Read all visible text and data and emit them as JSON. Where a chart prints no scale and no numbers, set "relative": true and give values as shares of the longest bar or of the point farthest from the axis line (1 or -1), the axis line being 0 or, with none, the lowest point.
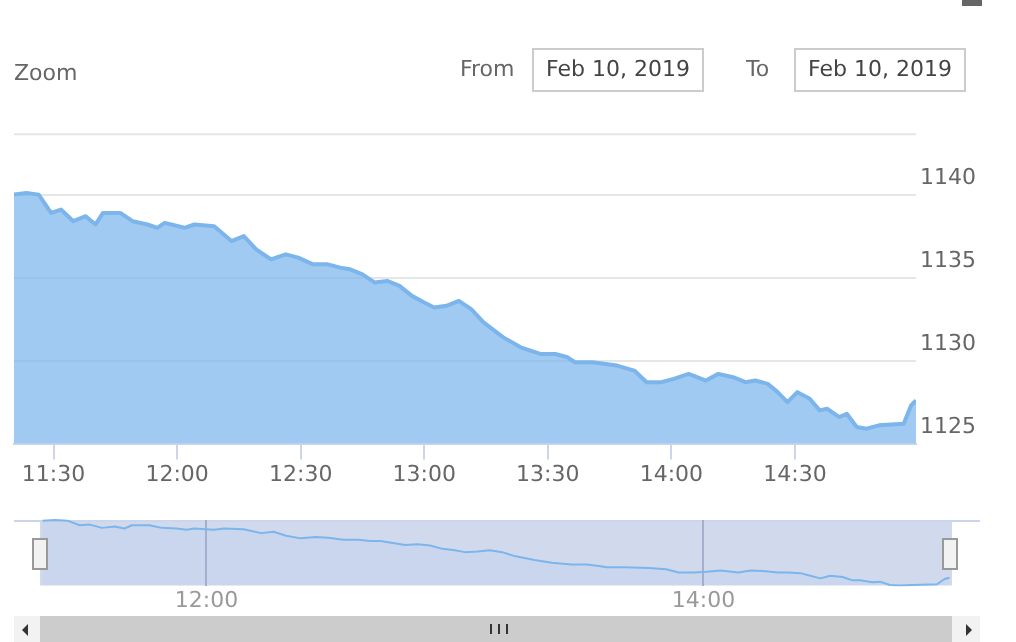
{
  "chart_data": [
    {
      "type": "area",
      "annotations": [
        "Zoom",
        "From",
        "Feb 10, 2019",
        "To",
        "Feb 10, 2019"
      ],
      "x": [
        11.34,
        11.39,
        11.44,
        11.49,
        11.53,
        11.58,
        11.63,
        11.67,
        11.7,
        11.77,
        11.82,
        11.88,
        11.92,
        11.95,
        12.03,
        12.07,
        12.15,
        12.22,
        12.27,
        12.32,
        12.38,
        12.44,
        12.49,
        12.55,
        12.61,
        12.66,
        12.7,
        12.75,
        12.8,
        12.85,
        12.9,
        12.95,
        13.0,
        13.04,
        13.09,
        13.14,
        13.19,
        13.24,
        13.32,
        13.39,
        13.47,
        13.53,
        13.58,
        13.61,
        13.68,
        13.78,
        13.85,
        13.9,
        13.96,
        14.01,
        14.07,
        14.14,
        14.19,
        14.25,
        14.3,
        14.34,
        14.39,
        14.43,
        14.47,
        14.51,
        14.56,
        14.6,
        14.63,
        14.68,
        14.71,
        14.75,
        14.79,
        14.84,
        14.94,
        14.97,
        14.99
      ],
      "series": [
        {
          "color": "#7cb5ec",
          "values": [
            1140.0,
            1140.1,
            1140.0,
            1138.9,
            1139.1,
            1138.4,
            1138.7,
            1138.2,
            1138.9,
            1138.9,
            1138.4,
            1138.2,
            1138.0,
            1138.3,
            1138.0,
            1138.2,
            1138.1,
            1137.2,
            1137.5,
            1136.7,
            1136.1,
            1136.4,
            1136.2,
            1135.8,
            1135.8,
            1135.6,
            1135.5,
            1135.2,
            1134.7,
            1134.8,
            1134.5,
            1133.9,
            1133.5,
            1133.2,
            1133.3,
            1133.6,
            1133.1,
            1132.3,
            1131.4,
            1130.8,
            1130.4,
            1130.4,
            1130.2,
            1129.9,
            1129.9,
            1129.7,
            1129.4,
            1128.7,
            1128.7,
            1128.9,
            1129.2,
            1128.8,
            1129.2,
            1129.0,
            1128.7,
            1128.8,
            1128.6,
            1128.1,
            1127.5,
            1128.1,
            1127.7,
            1127.0,
            1127.1,
            1126.6,
            1126.8,
            1126.0,
            1125.9,
            1126.1,
            1126.2,
            1127.3,
            1127.6
          ]
        }
      ],
      "xlim": [
        11.34,
        14.99
      ],
      "xticks": [
        {
          "value": 11.5,
          "label": "11:30"
        },
        {
          "value": 12,
          "label": "12:00"
        },
        {
          "value": 12.5,
          "label": "12:30"
        },
        {
          "value": 13,
          "label": "13:00"
        },
        {
          "value": 13.5,
          "label": "13:30"
        },
        {
          "value": 14,
          "label": "14:00"
        },
        {
          "value": 14.5,
          "label": "14:30"
        }
      ],
      "ylim": [
        1125,
        1143.7
      ],
      "yticks": [
        1125,
        1130,
        1135,
        1140
      ],
      "grid": "y"
    },
    {
      "type": "area",
      "x": [
        11.34,
        11.39,
        11.44,
        11.49,
        11.53,
        11.58,
        11.63,
        11.67,
        11.7,
        11.77,
        11.82,
        11.88,
        11.92,
        11.95,
        12.03,
        12.07,
        12.15,
        12.22,
        12.27,
        12.32,
        12.38,
        12.44,
        12.49,
        12.55,
        12.61,
        12.66,
        12.7,
        12.75,
        12.8,
        12.85,
        12.9,
        12.95,
        13.0,
        13.04,
        13.09,
        13.14,
        13.19,
        13.24,
        13.32,
        13.39,
        13.47,
        13.53,
        13.58,
        13.61,
        13.68,
        13.78,
        13.85,
        13.9,
        13.96,
        14.01,
        14.07,
        14.14,
        14.19,
        14.25,
        14.3,
        14.34,
        14.39,
        14.43,
        14.47,
        14.51,
        14.56,
        14.6,
        14.63,
        14.68,
        14.71,
        14.75,
        14.79,
        14.84,
        14.94,
        14.97,
        14.99
      ],
      "series": [
        {
          "color": "#7cb5ec",
          "values": [
            0.99,
            1.0,
            0.99,
            0.92,
            0.93,
            0.88,
            0.9,
            0.87,
            0.92,
            0.92,
            0.88,
            0.87,
            0.85,
            0.87,
            0.85,
            0.87,
            0.86,
            0.8,
            0.82,
            0.76,
            0.72,
            0.74,
            0.73,
            0.7,
            0.7,
            0.68,
            0.68,
            0.65,
            0.62,
            0.63,
            0.61,
            0.56,
            0.54,
            0.51,
            0.52,
            0.54,
            0.51,
            0.45,
            0.39,
            0.35,
            0.32,
            0.32,
            0.3,
            0.28,
            0.28,
            0.27,
            0.25,
            0.2,
            0.2,
            0.21,
            0.23,
            0.2,
            0.23,
            0.22,
            0.2,
            0.2,
            0.19,
            0.15,
            0.11,
            0.15,
            0.13,
            0.08,
            0.08,
            0.05,
            0.06,
            0.01,
            0,
            0.01,
            0.02,
            0.1,
            0.12
          ]
        }
      ],
      "relative": true,
      "xlim": [
        11.33,
        15.0
      ],
      "xticks": [
        {
          "value": 12,
          "label": "12:00"
        },
        {
          "value": 14,
          "label": "14:00"
        }
      ],
      "tick_labels": "x",
      "grid": "x"
    }
  ]
}
